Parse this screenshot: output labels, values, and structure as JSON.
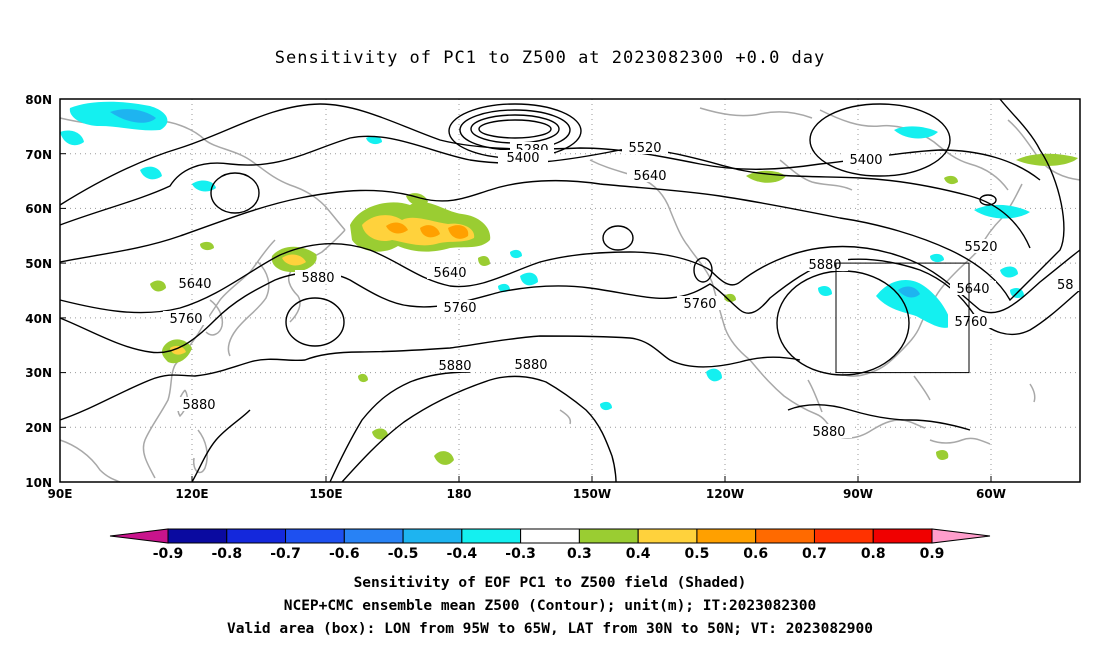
{
  "title": "Sensitivity of PC1 to Z500 at 2023082300 +0.0 day",
  "axes": {
    "lat_labels": [
      "80N",
      "70N",
      "60N",
      "50N",
      "40N",
      "30N",
      "20N",
      "10N"
    ],
    "lon_labels": [
      "90E",
      "120E",
      "150E",
      "180",
      "150W",
      "120W",
      "90W",
      "60W"
    ]
  },
  "contour_labels": [
    {
      "text": "5280"
    },
    {
      "text": "5400"
    },
    {
      "text": "5520"
    },
    {
      "text": "5640"
    },
    {
      "text": "5400"
    },
    {
      "text": "5520"
    },
    {
      "text": "5640"
    },
    {
      "text": "5760"
    },
    {
      "text": "58"
    },
    {
      "text": "5880"
    },
    {
      "text": "5640"
    },
    {
      "text": "5760"
    },
    {
      "text": "5880"
    },
    {
      "text": "5640"
    },
    {
      "text": "5760"
    },
    {
      "text": "5880"
    },
    {
      "text": "5880"
    },
    {
      "text": "5880"
    },
    {
      "text": "5760"
    },
    {
      "text": "5880"
    }
  ],
  "colorbar": {
    "labels": [
      "-0.9",
      "-0.8",
      "-0.7",
      "-0.6",
      "-0.5",
      "-0.4",
      "-0.3",
      "0.3",
      "0.4",
      "0.5",
      "0.6",
      "0.7",
      "0.8",
      "0.9"
    ],
    "colors": [
      "#0a0aa0",
      "#1428dc",
      "#1e50f0",
      "#2882f5",
      "#1eb4f0",
      "#14f0f0",
      "#ffffff",
      "#9acd32",
      "#ffd23c",
      "#ffa000",
      "#ff6a00",
      "#ff3200",
      "#f00000"
    ],
    "left_tip_color": "#c8148c",
    "right_tip_color": "#ff9ecc"
  },
  "valid_box": {
    "lon_min": -95,
    "lon_max": -65,
    "lat_min": 30,
    "lat_max": 50
  },
  "captions": {
    "line1": "Sensitivity of EOF PC1 to Z500 field (Shaded)",
    "line2": "NCEP+CMC ensemble mean Z500 (Contour); unit(m); IT:2023082300",
    "line3": "Valid area (box): LON from 95W to 65W, LAT from 30N to 50N; VT: 2023082900"
  }
}
